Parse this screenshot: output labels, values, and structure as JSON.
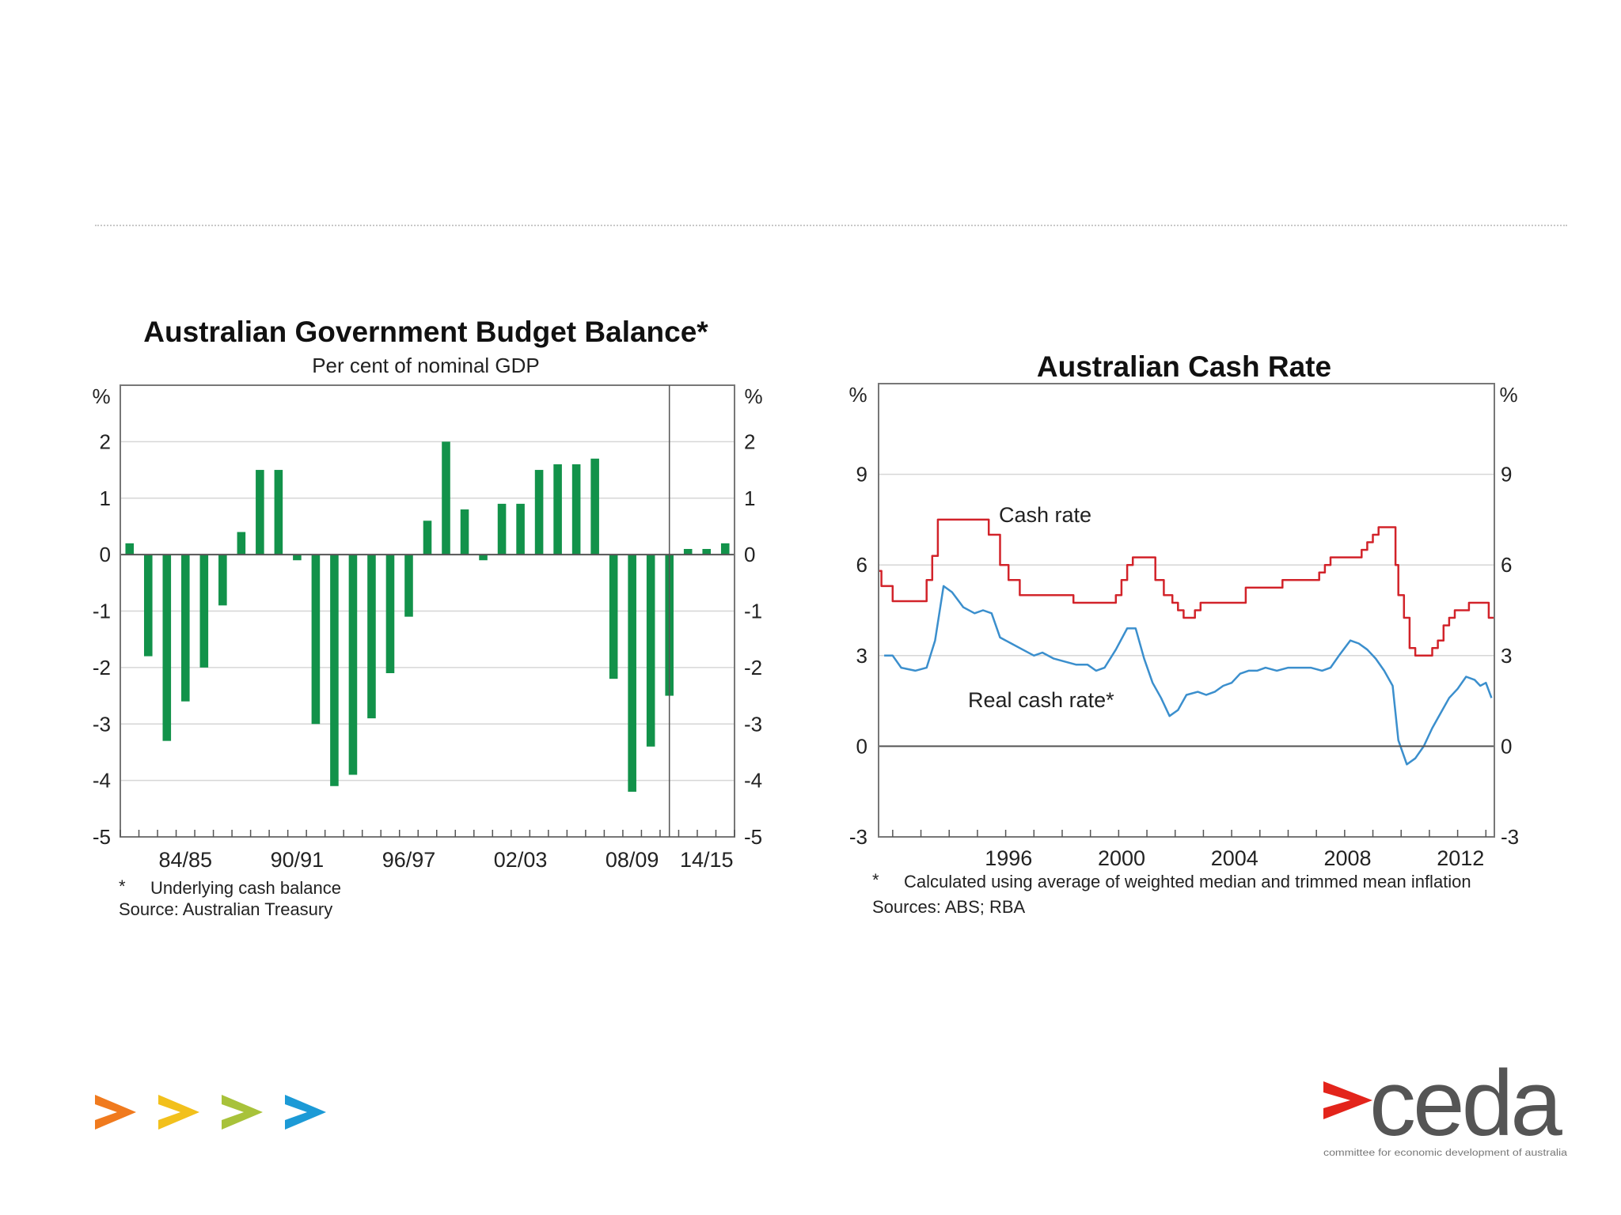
{
  "slide": {
    "logo": {
      "wordmark": "ceda",
      "tagline": "committee for economic development of australia",
      "arrow_color": "#e3241b",
      "text_color": "#555555"
    },
    "chevrons": [
      {
        "name": "orange-chevron-icon",
        "color": "#f07a1e"
      },
      {
        "name": "yellow-chevron-icon",
        "color": "#f2c01c"
      },
      {
        "name": "lime-chevron-icon",
        "color": "#a8c23a"
      },
      {
        "name": "blue-chevron-icon",
        "color": "#1c9ad6"
      }
    ]
  },
  "chart_data": [
    {
      "type": "bar",
      "title": "Australian Government Budget Balance*",
      "subtitle": "Per cent of nominal GDP",
      "ylabel_left": "%",
      "ylabel_right": "%",
      "ylim": [
        -5,
        3
      ],
      "yticks": [
        "2",
        "1",
        "0",
        "-1",
        "-2",
        "-3",
        "-4",
        "-5"
      ],
      "ytick_values": [
        2,
        1,
        0,
        -1,
        -2,
        -3,
        -4,
        -5
      ],
      "xtick_labels": [
        "84/85",
        "90/91",
        "96/97",
        "02/03",
        "08/09",
        "14/15"
      ],
      "color": "#12924a",
      "values": [
        0.2,
        -1.8,
        -3.3,
        -2.6,
        -2.0,
        -0.9,
        0.4,
        1.5,
        1.5,
        -0.1,
        -3.0,
        -4.1,
        -3.9,
        -2.9,
        -2.1,
        -1.1,
        0.6,
        2.0,
        0.8,
        -0.1,
        0.9,
        0.9,
        1.5,
        1.6,
        1.6,
        1.7,
        -2.2,
        -4.2,
        -3.4,
        -2.5,
        0.1,
        0.1,
        0.2
      ],
      "forecast_divider_after_index": 28,
      "footnote": "Underlying cash balance",
      "footnote_marker": "*",
      "source": "Source: Australian Treasury"
    },
    {
      "type": "line",
      "title": "Australian Cash Rate",
      "ylabel_left": "%",
      "ylabel_right": "%",
      "ylim": [
        -3,
        12
      ],
      "xlim": [
        1990.5,
        2012.3
      ],
      "yticks": [
        "9",
        "6",
        "3",
        "0",
        "-3"
      ],
      "ytick_values": [
        9,
        6,
        3,
        0,
        -3
      ],
      "xtick_labels": [
        "1996",
        "2000",
        "2004",
        "2008",
        "2012"
      ],
      "xtick_values": [
        1996,
        2000,
        2004,
        2008,
        2012
      ],
      "series": [
        {
          "name": "Cash rate",
          "color": "#d2232a",
          "step": true,
          "points": [
            [
              1990.5,
              5.8
            ],
            [
              1990.6,
              5.3
            ],
            [
              1991.0,
              4.8
            ],
            [
              1992.0,
              4.8
            ],
            [
              1992.2,
              5.5
            ],
            [
              1992.4,
              6.3
            ],
            [
              1992.6,
              7.5
            ],
            [
              1994.2,
              7.5
            ],
            [
              1994.4,
              7.0
            ],
            [
              1994.8,
              6.0
            ],
            [
              1995.1,
              5.5
            ],
            [
              1995.5,
              5.0
            ],
            [
              1997.0,
              5.0
            ],
            [
              1997.4,
              4.75
            ],
            [
              1998.6,
              4.75
            ],
            [
              1998.9,
              5.0
            ],
            [
              1999.1,
              5.5
            ],
            [
              1999.3,
              6.0
            ],
            [
              1999.5,
              6.25
            ],
            [
              2000.1,
              6.25
            ],
            [
              2000.3,
              5.5
            ],
            [
              2000.6,
              5.0
            ],
            [
              2000.9,
              4.75
            ],
            [
              2001.1,
              4.5
            ],
            [
              2001.3,
              4.25
            ],
            [
              2001.7,
              4.5
            ],
            [
              2001.9,
              4.75
            ],
            [
              2003.3,
              4.75
            ],
            [
              2003.5,
              5.25
            ],
            [
              2004.6,
              5.25
            ],
            [
              2004.8,
              5.5
            ],
            [
              2005.9,
              5.5
            ],
            [
              2006.1,
              5.75
            ],
            [
              2006.3,
              6.0
            ],
            [
              2006.5,
              6.25
            ],
            [
              2007.4,
              6.25
            ],
            [
              2007.6,
              6.5
            ],
            [
              2007.8,
              6.75
            ],
            [
              2008.0,
              7.0
            ],
            [
              2008.2,
              7.25
            ],
            [
              2008.6,
              7.25
            ],
            [
              2008.8,
              6.0
            ],
            [
              2008.9,
              5.0
            ],
            [
              2009.1,
              4.25
            ],
            [
              2009.3,
              3.25
            ],
            [
              2009.5,
              3.0
            ],
            [
              2010.0,
              3.0
            ],
            [
              2010.1,
              3.25
            ],
            [
              2010.3,
              3.5
            ],
            [
              2010.5,
              4.0
            ],
            [
              2010.7,
              4.25
            ],
            [
              2010.9,
              4.5
            ],
            [
              2011.3,
              4.5
            ],
            [
              2011.4,
              4.75
            ],
            [
              2012.0,
              4.75
            ],
            [
              2012.1,
              4.25
            ],
            [
              2012.3,
              4.25
            ]
          ]
        },
        {
          "name": "Real cash rate*",
          "color": "#3b8fcd",
          "step": false,
          "points": [
            [
              1990.7,
              3.0
            ],
            [
              1991.0,
              3.0
            ],
            [
              1991.3,
              2.6
            ],
            [
              1991.8,
              2.5
            ],
            [
              1992.2,
              2.6
            ],
            [
              1992.5,
              3.5
            ],
            [
              1992.8,
              5.3
            ],
            [
              1993.1,
              5.1
            ],
            [
              1993.5,
              4.6
            ],
            [
              1993.9,
              4.4
            ],
            [
              1994.2,
              4.5
            ],
            [
              1994.5,
              4.4
            ],
            [
              1994.8,
              3.6
            ],
            [
              1995.2,
              3.4
            ],
            [
              1995.6,
              3.2
            ],
            [
              1996.0,
              3.0
            ],
            [
              1996.3,
              3.1
            ],
            [
              1996.7,
              2.9
            ],
            [
              1997.1,
              2.8
            ],
            [
              1997.5,
              2.7
            ],
            [
              1997.9,
              2.7
            ],
            [
              1998.2,
              2.5
            ],
            [
              1998.5,
              2.6
            ],
            [
              1998.9,
              3.2
            ],
            [
              1999.3,
              3.9
            ],
            [
              1999.6,
              3.9
            ],
            [
              1999.9,
              2.9
            ],
            [
              2000.2,
              2.1
            ],
            [
              2000.5,
              1.6
            ],
            [
              2000.8,
              1.0
            ],
            [
              2001.1,
              1.2
            ],
            [
              2001.4,
              1.7
            ],
            [
              2001.8,
              1.8
            ],
            [
              2002.1,
              1.7
            ],
            [
              2002.4,
              1.8
            ],
            [
              2002.7,
              2.0
            ],
            [
              2003.0,
              2.1
            ],
            [
              2003.3,
              2.4
            ],
            [
              2003.6,
              2.5
            ],
            [
              2003.9,
              2.5
            ],
            [
              2004.2,
              2.6
            ],
            [
              2004.6,
              2.5
            ],
            [
              2005.0,
              2.6
            ],
            [
              2005.4,
              2.6
            ],
            [
              2005.8,
              2.6
            ],
            [
              2006.2,
              2.5
            ],
            [
              2006.5,
              2.6
            ],
            [
              2006.8,
              3.0
            ],
            [
              2007.2,
              3.5
            ],
            [
              2007.5,
              3.4
            ],
            [
              2007.8,
              3.2
            ],
            [
              2008.1,
              2.9
            ],
            [
              2008.4,
              2.5
            ],
            [
              2008.7,
              2.0
            ],
            [
              2008.9,
              0.2
            ],
            [
              2009.2,
              -0.6
            ],
            [
              2009.5,
              -0.4
            ],
            [
              2009.8,
              0.0
            ],
            [
              2010.1,
              0.6
            ],
            [
              2010.4,
              1.1
            ],
            [
              2010.7,
              1.6
            ],
            [
              2011.0,
              1.9
            ],
            [
              2011.3,
              2.3
            ],
            [
              2011.6,
              2.2
            ],
            [
              2011.8,
              2.0
            ],
            [
              2012.0,
              2.1
            ],
            [
              2012.2,
              1.6
            ]
          ]
        }
      ],
      "series_labels": [
        "Cash rate",
        "Real cash rate*"
      ],
      "footnote": "Calculated using average of weighted median and trimmed mean inflation",
      "footnote_marker": "*",
      "source": "Sources: ABS; RBA"
    }
  ]
}
